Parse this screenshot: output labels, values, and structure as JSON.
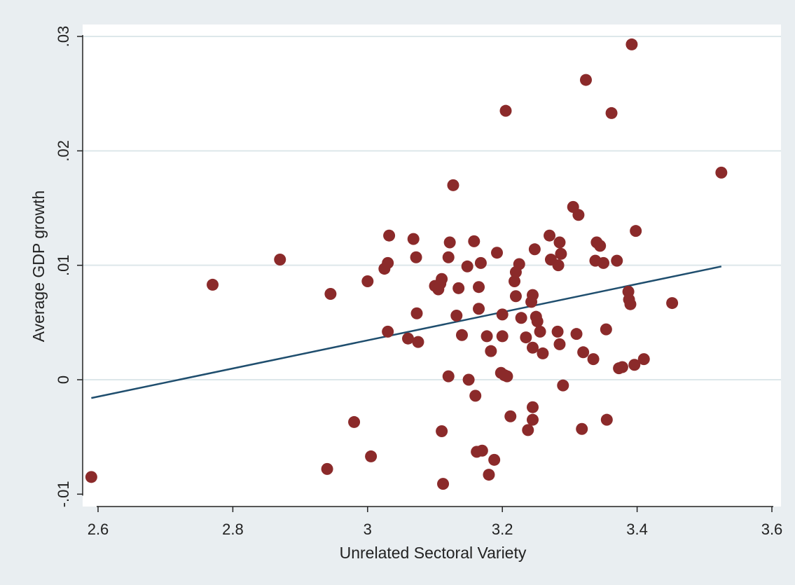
{
  "chart_data": {
    "type": "scatter",
    "title": "",
    "xlabel": "Unrelated Sectoral Variety",
    "ylabel": "Average GDP growth",
    "xlim": [
      2.58,
      3.62
    ],
    "ylim": [
      -0.0105,
      0.031
    ],
    "x_ticks": [
      2.6,
      2.8,
      3.0,
      3.2,
      3.4,
      3.6
    ],
    "x_tick_labels": [
      "2.6",
      "2.8",
      "3",
      "3.2",
      "3.4",
      "3.6"
    ],
    "y_ticks": [
      -0.01,
      0,
      0.01,
      0.02,
      0.03
    ],
    "y_tick_labels": [
      "-.01",
      "0",
      ".01",
      ".02",
      ".03"
    ],
    "grid": "horizontal",
    "colors": {
      "background": "#e9eef1",
      "plot_area": "#ffffff",
      "points": "#8b2a2a",
      "fit_line": "#1f4e6e",
      "grid": "#dde7ea"
    },
    "series": [
      {
        "points": [
          [
            2.59,
            -0.0085
          ],
          [
            2.77,
            0.0083
          ],
          [
            2.87,
            0.0105
          ],
          [
            2.94,
            -0.0078
          ],
          [
            2.945,
            0.0075
          ],
          [
            2.98,
            -0.0037
          ],
          [
            3.0,
            0.0086
          ],
          [
            3.005,
            -0.0067
          ],
          [
            3.025,
            0.0097
          ],
          [
            3.03,
            0.0102
          ],
          [
            3.03,
            0.0042
          ],
          [
            3.032,
            0.0126
          ],
          [
            3.06,
            0.0036
          ],
          [
            3.068,
            0.0123
          ],
          [
            3.072,
            0.0107
          ],
          [
            3.073,
            0.0058
          ],
          [
            3.075,
            0.0033
          ],
          [
            3.1,
            0.0082
          ],
          [
            3.105,
            0.0079
          ],
          [
            3.108,
            0.0084
          ],
          [
            3.11,
            0.0088
          ],
          [
            3.11,
            -0.0045
          ],
          [
            3.112,
            -0.0091
          ],
          [
            3.12,
            0.0107
          ],
          [
            3.12,
            0.0003
          ],
          [
            3.122,
            0.012
          ],
          [
            3.127,
            0.017
          ],
          [
            3.132,
            0.0056
          ],
          [
            3.135,
            0.008
          ],
          [
            3.14,
            0.0039
          ],
          [
            3.148,
            0.0099
          ],
          [
            3.15,
            0.0
          ],
          [
            3.158,
            0.0121
          ],
          [
            3.16,
            -0.0014
          ],
          [
            3.162,
            -0.0063
          ],
          [
            3.165,
            0.0081
          ],
          [
            3.165,
            0.0062
          ],
          [
            3.168,
            0.0102
          ],
          [
            3.17,
            -0.0062
          ],
          [
            3.177,
            0.0038
          ],
          [
            3.18,
            -0.0083
          ],
          [
            3.183,
            0.0025
          ],
          [
            3.188,
            -0.007
          ],
          [
            3.192,
            0.0111
          ],
          [
            3.198,
            0.0006
          ],
          [
            3.2,
            0.0057
          ],
          [
            3.2,
            0.0038
          ],
          [
            3.203,
            0.0004
          ],
          [
            3.205,
            0.0235
          ],
          [
            3.207,
            0.0003
          ],
          [
            3.212,
            -0.0032
          ],
          [
            3.218,
            0.0086
          ],
          [
            3.22,
            0.0094
          ],
          [
            3.22,
            0.0073
          ],
          [
            3.225,
            0.0101
          ],
          [
            3.228,
            0.0054
          ],
          [
            3.235,
            0.0037
          ],
          [
            3.238,
            -0.0044
          ],
          [
            3.243,
            0.0068
          ],
          [
            3.245,
            0.0074
          ],
          [
            3.245,
            0.0028
          ],
          [
            3.245,
            -0.0024
          ],
          [
            3.245,
            -0.0035
          ],
          [
            3.248,
            0.0114
          ],
          [
            3.25,
            0.0055
          ],
          [
            3.252,
            0.0051
          ],
          [
            3.256,
            0.0042
          ],
          [
            3.26,
            0.0023
          ],
          [
            3.27,
            0.0126
          ],
          [
            3.272,
            0.0105
          ],
          [
            3.282,
            0.0042
          ],
          [
            3.283,
            0.01
          ],
          [
            3.285,
            0.012
          ],
          [
            3.285,
            0.0031
          ],
          [
            3.287,
            0.011
          ],
          [
            3.29,
            -0.0005
          ],
          [
            3.305,
            0.0151
          ],
          [
            3.31,
            0.004
          ],
          [
            3.313,
            0.0144
          ],
          [
            3.318,
            -0.0043
          ],
          [
            3.32,
            0.0024
          ],
          [
            3.324,
            0.0262
          ],
          [
            3.335,
            0.0018
          ],
          [
            3.338,
            0.0104
          ],
          [
            3.34,
            0.012
          ],
          [
            3.345,
            0.0117
          ],
          [
            3.35,
            0.0102
          ],
          [
            3.354,
            0.0044
          ],
          [
            3.355,
            -0.0035
          ],
          [
            3.362,
            0.0233
          ],
          [
            3.37,
            0.0104
          ],
          [
            3.373,
            0.001
          ],
          [
            3.378,
            0.0011
          ],
          [
            3.387,
            0.0077
          ],
          [
            3.388,
            0.007
          ],
          [
            3.39,
            0.0066
          ],
          [
            3.392,
            0.0293
          ],
          [
            3.396,
            0.0013
          ],
          [
            3.398,
            0.013
          ],
          [
            3.41,
            0.0018
          ],
          [
            3.452,
            0.0067
          ],
          [
            3.525,
            0.0181
          ]
        ]
      }
    ],
    "fit_line": {
      "x": [
        2.59,
        3.525
      ],
      "y": [
        -0.0016,
        0.0099
      ]
    }
  }
}
